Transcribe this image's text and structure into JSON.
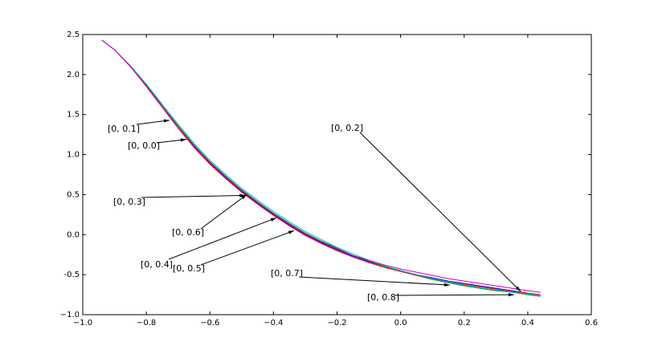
{
  "chart_data": {
    "type": "line",
    "x": [
      -0.94,
      -0.9,
      -0.85,
      -0.8,
      -0.75,
      -0.7,
      -0.65,
      -0.6,
      -0.55,
      -0.5,
      -0.45,
      -0.4,
      -0.35,
      -0.3,
      -0.25,
      -0.2,
      -0.15,
      -0.1,
      -0.05,
      0,
      0.05,
      0.1,
      0.15,
      0.2,
      0.25,
      0.3,
      0.35,
      0.4,
      0.44
    ],
    "series": [
      {
        "color": "#0000ff",
        "values": [
          2.43,
          2.31,
          2.1,
          1.86,
          1.6,
          1.34,
          1.1,
          0.89,
          0.71,
          0.54,
          0.39,
          0.25,
          0.12,
          0.0,
          -0.1,
          -0.19,
          -0.27,
          -0.34,
          -0.4,
          -0.45,
          -0.5,
          -0.54,
          -0.58,
          -0.61,
          -0.64,
          -0.67,
          -0.7,
          -0.73,
          -0.75
        ]
      },
      {
        "color": "#008000",
        "values": [
          2.43,
          2.31,
          2.1,
          1.87,
          1.61,
          1.36,
          1.12,
          0.91,
          0.73,
          0.56,
          0.41,
          0.27,
          0.14,
          0.02,
          -0.08,
          -0.17,
          -0.26,
          -0.33,
          -0.4,
          -0.46,
          -0.51,
          -0.56,
          -0.6,
          -0.64,
          -0.67,
          -0.7,
          -0.72,
          -0.75,
          -0.77
        ]
      },
      {
        "color": "#ff0000",
        "values": [
          2.43,
          2.31,
          2.1,
          1.85,
          1.59,
          1.33,
          1.09,
          0.88,
          0.7,
          0.53,
          0.38,
          0.24,
          0.11,
          -0.01,
          -0.11,
          -0.2,
          -0.28,
          -0.35,
          -0.41,
          -0.46,
          -0.51,
          -0.55,
          -0.59,
          -0.62,
          -0.65,
          -0.68,
          -0.71,
          -0.73,
          -0.75
        ]
      },
      {
        "color": "#00bfbf",
        "values": [
          2.43,
          2.31,
          2.11,
          1.88,
          1.63,
          1.38,
          1.14,
          0.93,
          0.75,
          0.58,
          0.43,
          0.29,
          0.16,
          0.04,
          -0.06,
          -0.16,
          -0.24,
          -0.32,
          -0.39,
          -0.45,
          -0.5,
          -0.55,
          -0.59,
          -0.63,
          -0.66,
          -0.69,
          -0.72,
          -0.74,
          -0.76
        ]
      },
      {
        "color": "#bf00bf",
        "values": [
          2.43,
          2.31,
          2.1,
          1.86,
          1.6,
          1.34,
          1.11,
          0.9,
          0.72,
          0.55,
          0.4,
          0.26,
          0.13,
          0.01,
          -0.09,
          -0.18,
          -0.26,
          -0.32,
          -0.38,
          -0.43,
          -0.47,
          -0.51,
          -0.55,
          -0.58,
          -0.61,
          -0.64,
          -0.67,
          -0.7,
          -0.72
        ]
      }
    ],
    "annotations": [
      {
        "text": "[0, 0.1]",
        "xy": [
          -0.727,
          1.43
        ]
      },
      {
        "text": "[0, 0.0]",
        "xy": [
          -0.674,
          1.19
        ]
      },
      {
        "text": "[0, 0.3]",
        "xy": [
          -0.489,
          0.49
        ]
      },
      {
        "text": "[0, 0.6]",
        "xy": [
          -0.484,
          0.5
        ]
      },
      {
        "text": "[0, 0.4]",
        "xy": [
          -0.391,
          0.21
        ]
      },
      {
        "text": "[0, 0.5]",
        "xy": [
          -0.335,
          0.05
        ]
      },
      {
        "text": "[0, 0.2]",
        "xy": [
          0.378,
          -0.71
        ]
      },
      {
        "text": "[0, 0.7]",
        "xy": [
          0.155,
          -0.63
        ]
      },
      {
        "text": "[0, 0.8]",
        "xy": [
          0.357,
          -0.75
        ]
      }
    ],
    "xlim": [
      -1.0,
      0.6
    ],
    "xticks": [
      {
        "value": -1.0,
        "label": "−1.0"
      },
      {
        "value": -0.8,
        "label": "−0.8"
      },
      {
        "value": -0.6,
        "label": "−0.6"
      },
      {
        "value": -0.4,
        "label": "−0.4"
      },
      {
        "value": -0.2,
        "label": "−0.2"
      },
      {
        "value": 0,
        "label": "0.0"
      },
      0.2,
      0.4,
      0.6
    ],
    "ylim": [
      -1.0,
      2.5
    ],
    "yticks": [
      {
        "value": -1.0,
        "label": "−1.0"
      },
      -0.5,
      {
        "value": 0,
        "label": "0.0"
      },
      0.5,
      {
        "value": 1,
        "label": "1.0"
      },
      1.5,
      {
        "value": 2,
        "label": "2.0"
      },
      2.5
    ]
  }
}
